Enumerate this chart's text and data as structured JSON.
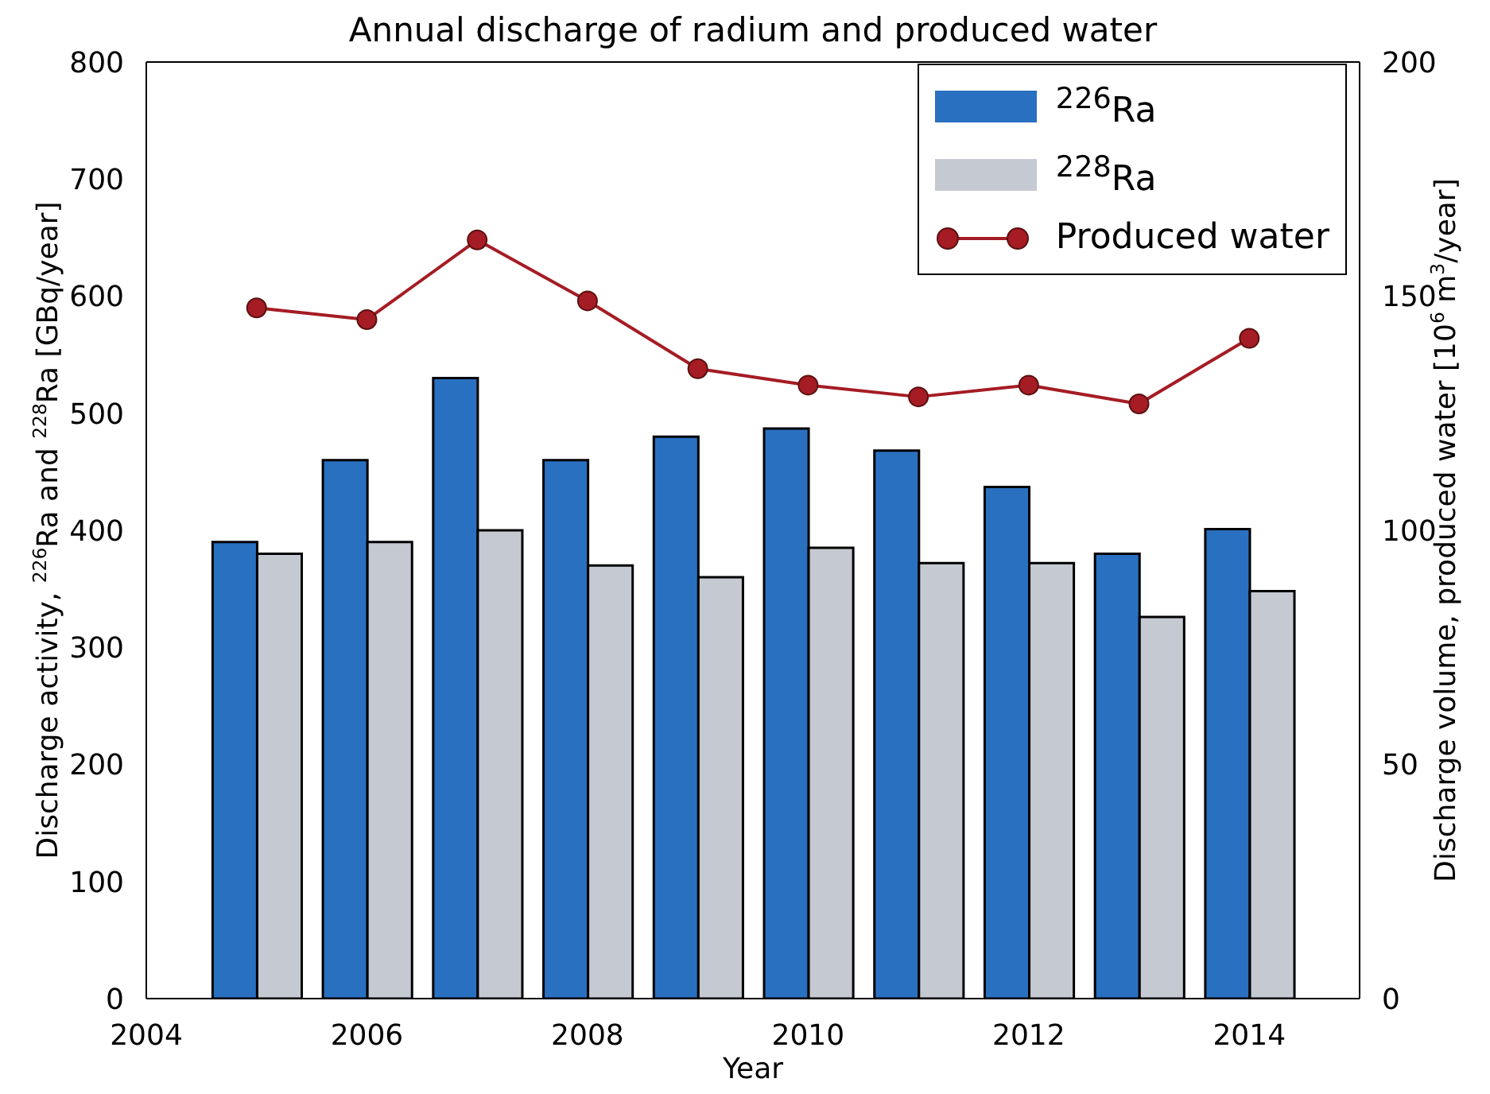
{
  "chart_data": {
    "type": "bar",
    "title": "Annual discharge of radium and produced water",
    "xlabel": "Year",
    "ylabel": "Discharge activity, $^{226}$Ra and $^{228}$Ra [GBq/year]",
    "y2label": "Discharge volume, produced water [10$^{6}$ m$^{3}$/year]",
    "x": [
      2005,
      2006,
      2007,
      2008,
      2009,
      2010,
      2011,
      2012,
      2013,
      2014
    ],
    "series": [
      {
        "name": "$^{226}$Ra",
        "color": "#2a70c0",
        "values": [
          390,
          460,
          530,
          460,
          480,
          487,
          468,
          437,
          380,
          401
        ]
      },
      {
        "name": "$^{228}$Ra",
        "color": "#c5c9d1",
        "values": [
          380,
          390,
          400,
          370,
          360,
          385,
          372,
          372,
          326,
          348
        ]
      },
      {
        "name": "Produced water",
        "type": "line",
        "axis": "y2",
        "color": "#a51c24",
        "marker": "circle",
        "values": [
          147.5,
          145,
          162,
          149,
          134.5,
          131,
          128.5,
          131,
          127,
          141
        ]
      }
    ],
    "xlim": [
      2004,
      2015
    ],
    "xticks": [
      2004,
      2006,
      2008,
      2010,
      2012,
      2014
    ],
    "ylim": [
      0,
      800
    ],
    "yticks": [
      0,
      100,
      200,
      300,
      400,
      500,
      600,
      700,
      800
    ],
    "y2lim": [
      0,
      200
    ],
    "y2ticks": [
      0,
      50,
      100,
      150,
      200
    ],
    "grid": false,
    "legend": "top right"
  }
}
